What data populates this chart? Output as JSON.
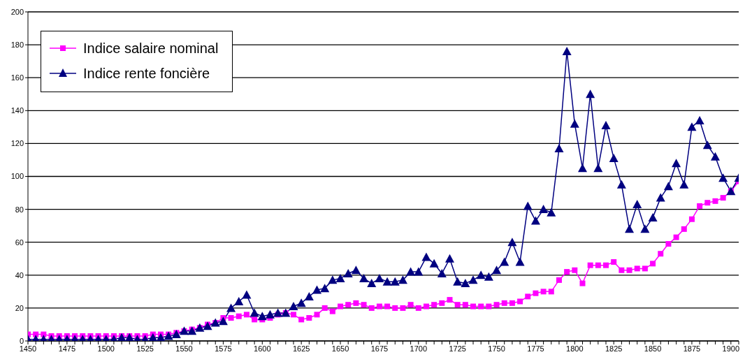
{
  "chart_data": {
    "type": "line",
    "x": [
      1450,
      1455,
      1460,
      1465,
      1470,
      1475,
      1480,
      1485,
      1490,
      1495,
      1500,
      1505,
      1510,
      1515,
      1520,
      1525,
      1530,
      1535,
      1540,
      1545,
      1550,
      1555,
      1560,
      1565,
      1570,
      1575,
      1580,
      1585,
      1590,
      1595,
      1600,
      1605,
      1610,
      1615,
      1620,
      1625,
      1630,
      1635,
      1640,
      1645,
      1650,
      1655,
      1660,
      1665,
      1670,
      1675,
      1680,
      1685,
      1690,
      1695,
      1700,
      1705,
      1710,
      1715,
      1720,
      1725,
      1730,
      1735,
      1740,
      1745,
      1750,
      1755,
      1760,
      1765,
      1770,
      1775,
      1780,
      1785,
      1790,
      1795,
      1800,
      1805,
      1810,
      1815,
      1820,
      1825,
      1830,
      1835,
      1840,
      1845,
      1850,
      1855,
      1860,
      1865,
      1870,
      1875,
      1880,
      1885,
      1890,
      1895,
      1900,
      1905
    ],
    "series": [
      {
        "name": "Indice salaire nominal",
        "color": "#ff00ff",
        "marker": "square",
        "values": [
          4,
          4,
          4,
          3,
          3,
          3,
          3,
          3,
          3,
          3,
          3,
          3,
          3,
          3,
          3,
          3,
          4,
          4,
          4,
          5,
          6,
          7,
          8,
          10,
          11,
          14,
          14,
          15,
          16,
          13,
          13,
          14,
          16,
          17,
          16,
          13,
          14,
          16,
          20,
          18,
          21,
          22,
          23,
          22,
          20,
          21,
          21,
          20,
          20,
          22,
          20,
          21,
          22,
          23,
          25,
          22,
          22,
          21,
          21,
          21,
          22,
          23,
          23,
          24,
          27,
          29,
          30,
          30,
          37,
          42,
          43,
          35,
          46,
          46,
          46,
          48,
          43,
          43,
          44,
          44,
          47,
          53,
          59,
          63,
          68,
          74,
          82,
          84,
          85,
          87,
          91,
          97
        ]
      },
      {
        "name": "Indice rente foncière",
        "color": "#000080",
        "marker": "triangle",
        "values": [
          1,
          1,
          1,
          1,
          1,
          1,
          1,
          1,
          1,
          1,
          1,
          1,
          2,
          2,
          1,
          1,
          2,
          2,
          3,
          4,
          6,
          6,
          8,
          9,
          11,
          12,
          20,
          24,
          28,
          17,
          15,
          16,
          17,
          17,
          21,
          23,
          27,
          31,
          32,
          37,
          38,
          41,
          43,
          38,
          35,
          38,
          36,
          36,
          37,
          42,
          42,
          51,
          47,
          41,
          50,
          36,
          35,
          37,
          40,
          39,
          43,
          48,
          60,
          48,
          82,
          73,
          80,
          78,
          117,
          176,
          132,
          105,
          150,
          105,
          131,
          111,
          95,
          68,
          83,
          68,
          75,
          87,
          94,
          108,
          95,
          130,
          134,
          119,
          112,
          99,
          91,
          99
        ]
      }
    ],
    "xlim": [
      1450,
      1905
    ],
    "xticks": [
      1450,
      {
        "value": 1455,
        "label": null
      },
      {
        "value": 1460,
        "label": null
      },
      {
        "value": 1465,
        "label": null
      },
      {
        "value": 1470,
        "label": null
      },
      1475,
      {
        "value": 1480,
        "label": null
      },
      {
        "value": 1485,
        "label": null
      },
      {
        "value": 1490,
        "label": null
      },
      {
        "value": 1495,
        "label": null
      },
      1500,
      {
        "value": 1505,
        "label": null
      },
      {
        "value": 1510,
        "label": null
      },
      {
        "value": 1515,
        "label": null
      },
      {
        "value": 1520,
        "label": null
      },
      1525,
      {
        "value": 1530,
        "label": null
      },
      {
        "value": 1535,
        "label": null
      },
      {
        "value": 1540,
        "label": null
      },
      {
        "value": 1545,
        "label": null
      },
      1550,
      {
        "value": 1555,
        "label": null
      },
      {
        "value": 1560,
        "label": null
      },
      {
        "value": 1565,
        "label": null
      },
      {
        "value": 1570,
        "label": null
      },
      1575,
      {
        "value": 1580,
        "label": null
      },
      {
        "value": 1585,
        "label": null
      },
      {
        "value": 1590,
        "label": null
      },
      {
        "value": 1595,
        "label": null
      },
      1600,
      {
        "value": 1605,
        "label": null
      },
      {
        "value": 1610,
        "label": null
      },
      {
        "value": 1615,
        "label": null
      },
      {
        "value": 1620,
        "label": null
      },
      1625,
      {
        "value": 1630,
        "label": null
      },
      {
        "value": 1635,
        "label": null
      },
      {
        "value": 1640,
        "label": null
      },
      {
        "value": 1645,
        "label": null
      },
      1650,
      {
        "value": 1655,
        "label": null
      },
      {
        "value": 1660,
        "label": null
      },
      {
        "value": 1665,
        "label": null
      },
      {
        "value": 1670,
        "label": null
      },
      1675,
      {
        "value": 1680,
        "label": null
      },
      {
        "value": 1685,
        "label": null
      },
      {
        "value": 1690,
        "label": null
      },
      {
        "value": 1695,
        "label": null
      },
      1700,
      {
        "value": 1705,
        "label": null
      },
      {
        "value": 1710,
        "label": null
      },
      {
        "value": 1715,
        "label": null
      },
      {
        "value": 1720,
        "label": null
      },
      1725,
      {
        "value": 1730,
        "label": null
      },
      {
        "value": 1735,
        "label": null
      },
      {
        "value": 1740,
        "label": null
      },
      {
        "value": 1745,
        "label": null
      },
      1750,
      {
        "value": 1755,
        "label": null
      },
      {
        "value": 1760,
        "label": null
      },
      {
        "value": 1765,
        "label": null
      },
      {
        "value": 1770,
        "label": null
      },
      1775,
      {
        "value": 1780,
        "label": null
      },
      {
        "value": 1785,
        "label": null
      },
      {
        "value": 1790,
        "label": null
      },
      {
        "value": 1795,
        "label": null
      },
      1800,
      {
        "value": 1805,
        "label": null
      },
      {
        "value": 1810,
        "label": null
      },
      {
        "value": 1815,
        "label": null
      },
      {
        "value": 1820,
        "label": null
      },
      1825,
      {
        "value": 1830,
        "label": null
      },
      {
        "value": 1835,
        "label": null
      },
      {
        "value": 1840,
        "label": null
      },
      {
        "value": 1845,
        "label": null
      },
      1850,
      {
        "value": 1855,
        "label": null
      },
      {
        "value": 1860,
        "label": null
      },
      {
        "value": 1865,
        "label": null
      },
      {
        "value": 1870,
        "label": null
      },
      1875,
      {
        "value": 1880,
        "label": null
      },
      {
        "value": 1885,
        "label": null
      },
      {
        "value": 1890,
        "label": null
      },
      {
        "value": 1895,
        "label": null
      },
      1900,
      {
        "value": 1905,
        "label": null
      }
    ],
    "ylim": [
      0,
      200
    ],
    "yticks": [
      0,
      20,
      40,
      60,
      80,
      100,
      120,
      140,
      160,
      180,
      200
    ],
    "grid": "y",
    "legend": "top left",
    "line_style": "solid"
  }
}
